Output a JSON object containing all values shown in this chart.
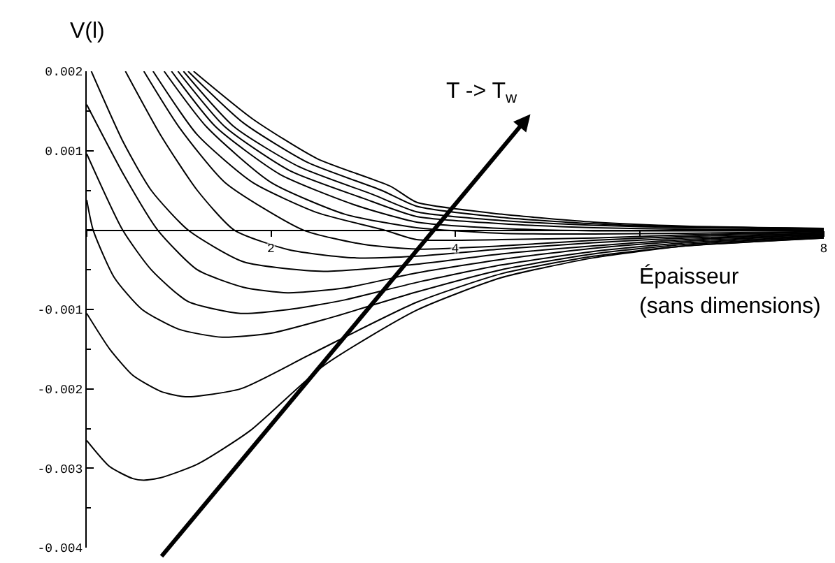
{
  "chart_data": {
    "type": "line",
    "ylabel": "V(l)",
    "xlabel": "Épaisseur\n(sans dimensions)",
    "xlim": [
      0,
      8
    ],
    "xticks": [
      {
        "value": 0,
        "label": null
      },
      2,
      4,
      {
        "value": 6,
        "label": null
      },
      8
    ],
    "ylim": [
      -0.004,
      0.002
    ],
    "yticks": [
      -0.004,
      -0.003,
      -0.002,
      -0.001,
      {
        "value": 0,
        "label": null
      },
      0.001,
      0.002
    ],
    "marker": "none",
    "line_style": "solid",
    "annotations": [
      "T -> T$_{w}$"
    ],
    "series": [
      {
        "color": "#000000",
        "x": [
          0,
          0.25,
          0.5,
          0.62,
          0.8,
          1.2,
          1.77,
          2.57,
          3.58,
          4.5,
          5.5,
          6.5,
          8
        ],
        "values": [
          -0.00265,
          -0.00298,
          -0.00313,
          -0.00315,
          -0.00312,
          -0.00295,
          -0.00253,
          -0.00171,
          -0.00101,
          -0.0006,
          -0.00035,
          -0.0002,
          -0.0001
        ]
      },
      {
        "color": "#000000",
        "x": [
          0,
          0.25,
          0.5,
          0.8,
          1.07,
          1.67,
          2.42,
          3.58,
          4.5,
          5.5,
          6.5,
          8
        ],
        "values": [
          -0.00105,
          -0.0015,
          -0.00183,
          -0.00203,
          -0.0021,
          -0.002,
          -0.00157,
          -0.00091,
          -0.00055,
          -0.00033,
          -0.0002,
          -0.0001
        ]
      },
      {
        "color": "#000000",
        "x": [
          0,
          0.07,
          0.3,
          0.6,
          1,
          1.47,
          2,
          2.6,
          3.58,
          4.5,
          5.5,
          6.5,
          8
        ],
        "values": [
          0.00038,
          0,
          -0.0006,
          -0.001,
          -0.00125,
          -0.00135,
          -0.0013,
          -0.00112,
          -0.00078,
          -0.0005,
          -0.0003,
          -0.00018,
          -9e-05
        ]
      },
      {
        "color": "#000000",
        "x": [
          0,
          0.39,
          0.7,
          1.1,
          1.67,
          2.2,
          2.8,
          3.58,
          4.5,
          5.5,
          6.5,
          8
        ],
        "values": [
          0.00096,
          0,
          -0.0005,
          -0.0009,
          -0.00105,
          -0.001,
          -0.00088,
          -0.00066,
          -0.00044,
          -0.00027,
          -0.00016,
          -8e-05
        ]
      },
      {
        "color": "#000000",
        "x": [
          0,
          0.4,
          0.77,
          1.2,
          1.7,
          2.18,
          2.8,
          3.58,
          4.5,
          5.5,
          6.5,
          8
        ],
        "values": [
          0.00158,
          0.0007,
          0,
          -0.0005,
          -0.00072,
          -0.00079,
          -0.00073,
          -0.00054,
          -0.00037,
          -0.00023,
          -0.00014,
          -7e-05
        ]
      },
      {
        "color": "#000000",
        "x": [
          0.05,
          0.4,
          0.7,
          1.1,
          1.7,
          2.57,
          3.58,
          4.5,
          5.5,
          6.5,
          8
        ],
        "values": [
          0.002,
          0.0011,
          0.0005,
          0,
          -0.0004,
          -0.00052,
          -0.00043,
          -0.0003,
          -0.0002,
          -0.00012,
          -6e-05
        ]
      },
      {
        "color": "#000000",
        "x": [
          0.42,
          0.8,
          1.2,
          1.6,
          2.2,
          2.9,
          3.58,
          4.5,
          5.5,
          6.5,
          8
        ],
        "values": [
          0.002,
          0.0012,
          0.0005,
          0,
          -0.00025,
          -0.00035,
          -0.00033,
          -0.00024,
          -0.00016,
          -0.0001,
          -5e-05
        ]
      },
      {
        "color": "#000000",
        "x": [
          0.62,
          1,
          1.5,
          2.35,
          3,
          3.58,
          4.5,
          5.5,
          6.5,
          8
        ],
        "values": [
          0.002,
          0.0013,
          0.0006,
          0,
          -0.00018,
          -0.00024,
          -0.0002,
          -0.00013,
          -8e-05,
          -4e-05
        ]
      },
      {
        "color": "#000000",
        "x": [
          0.72,
          1.2,
          1.8,
          2.5,
          3.23,
          3.58,
          4.5,
          5.5,
          6.5,
          8
        ],
        "values": [
          0.002,
          0.0012,
          0.0006,
          0.00022,
          0,
          -0.00012,
          -0.00012,
          -0.0001,
          -6e-05,
          -3e-05
        ]
      },
      {
        "color": "#000000",
        "x": [
          0.84,
          1.3,
          2,
          2.8,
          3.58,
          4.5,
          5.5,
          6.5,
          8
        ],
        "values": [
          0.002,
          0.0013,
          0.0006,
          0.0002,
          3e-05,
          -4e-05,
          -5e-05,
          -4e-05,
          -2e-05
        ]
      },
      {
        "color": "#000000",
        "x": [
          0.92,
          1.4,
          2.1,
          2.9,
          3.58,
          4.5,
          5.5,
          6.5,
          8
        ],
        "values": [
          0.002,
          0.0013,
          0.0007,
          0.00032,
          0.0001,
          2e-05,
          -1e-05,
          -1e-05,
          -1e-05
        ]
      },
      {
        "color": "#000000",
        "x": [
          0.99,
          1.5,
          2.2,
          3,
          3.58,
          4.5,
          5.5,
          6.5,
          8
        ],
        "values": [
          0.002,
          0.0013,
          0.00075,
          0.0004,
          0.00017,
          8e-05,
          3e-05,
          1e-05,
          0
        ]
      },
      {
        "color": "#000000",
        "x": [
          1.05,
          1.6,
          2.3,
          3.1,
          3.58,
          4.5,
          5.5,
          6.5,
          8
        ],
        "values": [
          0.002,
          0.0013,
          0.0008,
          0.00045,
          0.00023,
          0.00012,
          6e-05,
          3e-05,
          1e-05
        ]
      },
      {
        "color": "#000000",
        "x": [
          1.1,
          1.7,
          2.4,
          3.2,
          3.58,
          4.5,
          5.5,
          6.5,
          8
        ],
        "values": [
          0.002,
          0.00135,
          0.00085,
          0.0005,
          0.0003,
          0.00016,
          8e-05,
          4e-05,
          2e-05
        ]
      },
      {
        "color": "#000000",
        "x": [
          1.16,
          1.8,
          2.5,
          3.3,
          3.58,
          4.5,
          5.5,
          6.5,
          8
        ],
        "values": [
          0.002,
          0.0014,
          0.0009,
          0.00055,
          0.00035,
          0.0002,
          0.0001,
          5e-05,
          2e-05
        ]
      }
    ]
  }
}
